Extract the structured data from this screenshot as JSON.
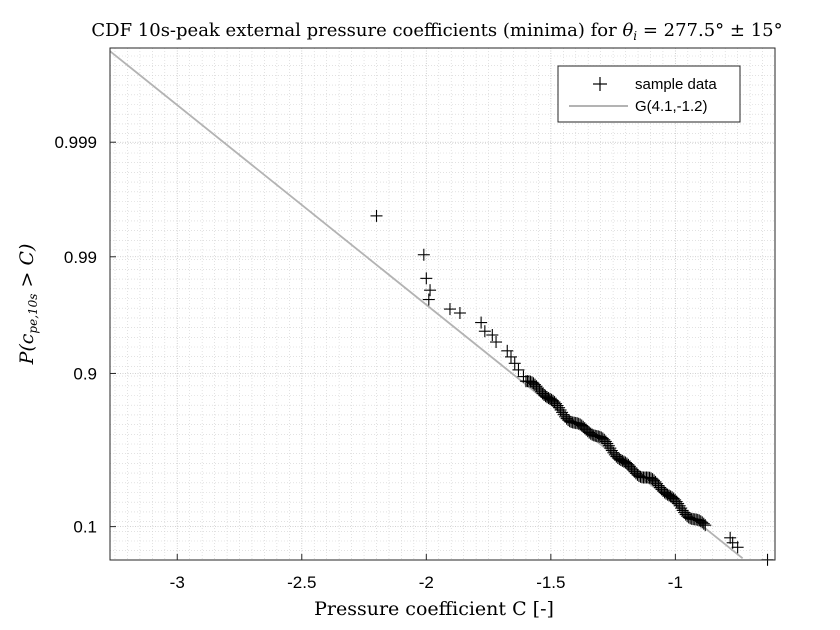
{
  "chart_data": {
    "type": "scatter",
    "title": "CDF 10s-peak external pressure coefficients (minima) for θi = 277.5° ± 15°",
    "title_parts": {
      "prefix": "CDF 10s-peak external pressure coefficients (minima) for ",
      "theta": "θ",
      "theta_sub": "i",
      "suffix": " = 277.5° ± 15°"
    },
    "xlabel": "Pressure coefficient C [-]",
    "ylabel_parts": {
      "p": "P(",
      "c": "c",
      "sub": "pe,10s",
      "rest": " > C)"
    },
    "xlim": [
      -3.27,
      -0.6
    ],
    "y_scale": "gumbel",
    "ylim": [
      0.011,
      0.99985
    ],
    "x_ticks": [
      -3,
      -2.5,
      -2,
      -1.5,
      -1
    ],
    "x_tick_labels": [
      "-3",
      "-2.5",
      "-2",
      "-1.5",
      "-1"
    ],
    "y_ticks": [
      0.1,
      0.9,
      0.99,
      0.999
    ],
    "y_tick_labels": [
      "0.1",
      "0.9",
      "0.99",
      "0.999"
    ],
    "grid": true,
    "legend": {
      "position": "top-right",
      "entries": [
        {
          "label": "sample data",
          "marker": "+",
          "color": "#000000"
        },
        {
          "label": "G(4.1,-1.2)",
          "marker": "line",
          "color": "#b3b3b3"
        }
      ]
    },
    "series": [
      {
        "name": "sample data",
        "points": [
          {
            "x": -2.2,
            "y": 0.9956
          },
          {
            "x": -2.01,
            "y": 0.9904
          },
          {
            "x": -2.0,
            "y": 0.9846
          },
          {
            "x": -1.985,
            "y": 0.9805
          },
          {
            "x": -1.99,
            "y": 0.9765
          },
          {
            "x": -1.905,
            "y": 0.9716
          },
          {
            "x": -1.865,
            "y": 0.9693
          },
          {
            "x": -1.78,
            "y": 0.9629
          },
          {
            "x": -1.765,
            "y": 0.956
          },
          {
            "x": -1.735,
            "y": 0.9526
          },
          {
            "x": -1.72,
            "y": 0.9456
          },
          {
            "x": -1.675,
            "y": 0.9354
          },
          {
            "x": -1.66,
            "y": 0.9273
          },
          {
            "x": -1.645,
            "y": 0.9177
          },
          {
            "x": -1.63,
            "y": 0.9066
          },
          {
            "x": -1.61,
            "y": 0.8938
          },
          {
            "x": -0.78,
            "y": 0.0559
          },
          {
            "x": -0.77,
            "y": 0.0413
          },
          {
            "x": -0.75,
            "y": 0.0305
          },
          {
            "x": -0.63,
            "y": 0.0112
          }
        ],
        "dense_band": {
          "x_start": -1.6,
          "x_end": -0.88,
          "y_start": 0.8842,
          "y_end": 0.1035
        }
      },
      {
        "name": "G(4.1,-1.2)",
        "line": [
          {
            "x": -3.27,
            "y": 0.99984
          },
          {
            "x": -0.73,
            "y": 0.0128
          }
        ]
      }
    ]
  }
}
